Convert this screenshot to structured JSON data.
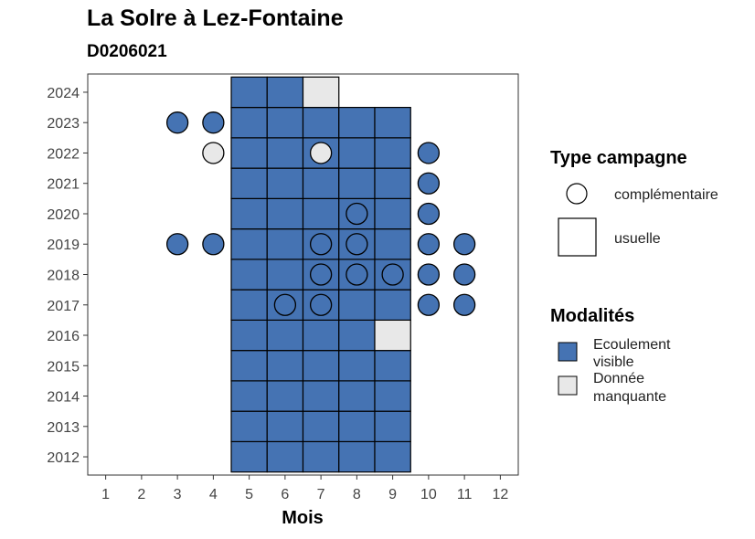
{
  "chart_data": {
    "type": "heatmap",
    "title": "La Solre à Lez-Fontaine",
    "subtitle": "D0206021",
    "xlabel": "Mois",
    "ylabel": "",
    "x_ticks": [
      1,
      2,
      3,
      4,
      5,
      6,
      7,
      8,
      9,
      10,
      11,
      12
    ],
    "y_ticks": [
      2012,
      2013,
      2014,
      2015,
      2016,
      2017,
      2018,
      2019,
      2020,
      2021,
      2022,
      2023,
      2024
    ],
    "xlim": [
      0.5,
      12.5
    ],
    "ylim": [
      2011.4,
      2024.6
    ],
    "colors": {
      "Ecoulement visible": "#4573b3",
      "Donnée manquante": "#e8e8e8"
    },
    "legends": {
      "type_campagne": {
        "title": "Type campagne",
        "items": [
          {
            "label": "complémentaire",
            "shape": "circle"
          },
          {
            "label": "usuelle",
            "shape": "square"
          }
        ]
      },
      "modalites": {
        "title": "Modalités",
        "items": [
          {
            "label_lines": [
              "Ecoulement",
              "visible"
            ],
            "key": "Ecoulement visible"
          },
          {
            "label_lines": [
              "Donnée",
              "manquante"
            ],
            "key": "Donnée manquante"
          }
        ]
      }
    },
    "usuelle": [
      {
        "year": 2012,
        "month": 5,
        "modalite": "Ecoulement visible"
      },
      {
        "year": 2012,
        "month": 6,
        "modalite": "Ecoulement visible"
      },
      {
        "year": 2012,
        "month": 7,
        "modalite": "Ecoulement visible"
      },
      {
        "year": 2012,
        "month": 8,
        "modalite": "Ecoulement visible"
      },
      {
        "year": 2012,
        "month": 9,
        "modalite": "Ecoulement visible"
      },
      {
        "year": 2013,
        "month": 5,
        "modalite": "Ecoulement visible"
      },
      {
        "year": 2013,
        "month": 6,
        "modalite": "Ecoulement visible"
      },
      {
        "year": 2013,
        "month": 7,
        "modalite": "Ecoulement visible"
      },
      {
        "year": 2013,
        "month": 8,
        "modalite": "Ecoulement visible"
      },
      {
        "year": 2013,
        "month": 9,
        "modalite": "Ecoulement visible"
      },
      {
        "year": 2014,
        "month": 5,
        "modalite": "Ecoulement visible"
      },
      {
        "year": 2014,
        "month": 6,
        "modalite": "Ecoulement visible"
      },
      {
        "year": 2014,
        "month": 7,
        "modalite": "Ecoulement visible"
      },
      {
        "year": 2014,
        "month": 8,
        "modalite": "Ecoulement visible"
      },
      {
        "year": 2014,
        "month": 9,
        "modalite": "Ecoulement visible"
      },
      {
        "year": 2015,
        "month": 5,
        "modalite": "Ecoulement visible"
      },
      {
        "year": 2015,
        "month": 6,
        "modalite": "Ecoulement visible"
      },
      {
        "year": 2015,
        "month": 7,
        "modalite": "Ecoulement visible"
      },
      {
        "year": 2015,
        "month": 8,
        "modalite": "Ecoulement visible"
      },
      {
        "year": 2015,
        "month": 9,
        "modalite": "Ecoulement visible"
      },
      {
        "year": 2016,
        "month": 5,
        "modalite": "Ecoulement visible"
      },
      {
        "year": 2016,
        "month": 6,
        "modalite": "Ecoulement visible"
      },
      {
        "year": 2016,
        "month": 7,
        "modalite": "Ecoulement visible"
      },
      {
        "year": 2016,
        "month": 8,
        "modalite": "Ecoulement visible"
      },
      {
        "year": 2016,
        "month": 9,
        "modalite": "Donnée manquante"
      },
      {
        "year": 2017,
        "month": 5,
        "modalite": "Ecoulement visible"
      },
      {
        "year": 2017,
        "month": 6,
        "modalite": "Ecoulement visible"
      },
      {
        "year": 2017,
        "month": 7,
        "modalite": "Ecoulement visible"
      },
      {
        "year": 2017,
        "month": 8,
        "modalite": "Ecoulement visible"
      },
      {
        "year": 2017,
        "month": 9,
        "modalite": "Ecoulement visible"
      },
      {
        "year": 2018,
        "month": 5,
        "modalite": "Ecoulement visible"
      },
      {
        "year": 2018,
        "month": 6,
        "modalite": "Ecoulement visible"
      },
      {
        "year": 2018,
        "month": 7,
        "modalite": "Ecoulement visible"
      },
      {
        "year": 2018,
        "month": 8,
        "modalite": "Ecoulement visible"
      },
      {
        "year": 2018,
        "month": 9,
        "modalite": "Ecoulement visible"
      },
      {
        "year": 2019,
        "month": 5,
        "modalite": "Ecoulement visible"
      },
      {
        "year": 2019,
        "month": 6,
        "modalite": "Ecoulement visible"
      },
      {
        "year": 2019,
        "month": 7,
        "modalite": "Ecoulement visible"
      },
      {
        "year": 2019,
        "month": 8,
        "modalite": "Ecoulement visible"
      },
      {
        "year": 2019,
        "month": 9,
        "modalite": "Ecoulement visible"
      },
      {
        "year": 2020,
        "month": 5,
        "modalite": "Ecoulement visible"
      },
      {
        "year": 2020,
        "month": 6,
        "modalite": "Ecoulement visible"
      },
      {
        "year": 2020,
        "month": 7,
        "modalite": "Ecoulement visible"
      },
      {
        "year": 2020,
        "month": 8,
        "modalite": "Ecoulement visible"
      },
      {
        "year": 2020,
        "month": 9,
        "modalite": "Ecoulement visible"
      },
      {
        "year": 2021,
        "month": 5,
        "modalite": "Ecoulement visible"
      },
      {
        "year": 2021,
        "month": 6,
        "modalite": "Ecoulement visible"
      },
      {
        "year": 2021,
        "month": 7,
        "modalite": "Ecoulement visible"
      },
      {
        "year": 2021,
        "month": 8,
        "modalite": "Ecoulement visible"
      },
      {
        "year": 2021,
        "month": 9,
        "modalite": "Ecoulement visible"
      },
      {
        "year": 2022,
        "month": 5,
        "modalite": "Ecoulement visible"
      },
      {
        "year": 2022,
        "month": 6,
        "modalite": "Ecoulement visible"
      },
      {
        "year": 2022,
        "month": 7,
        "modalite": "Ecoulement visible"
      },
      {
        "year": 2022,
        "month": 8,
        "modalite": "Ecoulement visible"
      },
      {
        "year": 2022,
        "month": 9,
        "modalite": "Ecoulement visible"
      },
      {
        "year": 2023,
        "month": 5,
        "modalite": "Ecoulement visible"
      },
      {
        "year": 2023,
        "month": 6,
        "modalite": "Ecoulement visible"
      },
      {
        "year": 2023,
        "month": 7,
        "modalite": "Ecoulement visible"
      },
      {
        "year": 2023,
        "month": 8,
        "modalite": "Ecoulement visible"
      },
      {
        "year": 2023,
        "month": 9,
        "modalite": "Ecoulement visible"
      },
      {
        "year": 2024,
        "month": 5,
        "modalite": "Ecoulement visible"
      },
      {
        "year": 2024,
        "month": 6,
        "modalite": "Ecoulement visible"
      },
      {
        "year": 2024,
        "month": 7,
        "modalite": "Donnée manquante"
      }
    ],
    "complementaire": [
      {
        "year": 2023,
        "month": 3,
        "modalite": "Ecoulement visible"
      },
      {
        "year": 2023,
        "month": 4,
        "modalite": "Ecoulement visible"
      },
      {
        "year": 2022,
        "month": 4,
        "modalite": "Donnée manquante"
      },
      {
        "year": 2022,
        "month": 7,
        "modalite": "Donnée manquante"
      },
      {
        "year": 2022,
        "month": 10,
        "modalite": "Ecoulement visible"
      },
      {
        "year": 2021,
        "month": 10,
        "modalite": "Ecoulement visible"
      },
      {
        "year": 2020,
        "month": 8,
        "modalite": "Ecoulement visible"
      },
      {
        "year": 2020,
        "month": 10,
        "modalite": "Ecoulement visible"
      },
      {
        "year": 2019,
        "month": 3,
        "modalite": "Ecoulement visible"
      },
      {
        "year": 2019,
        "month": 4,
        "modalite": "Ecoulement visible"
      },
      {
        "year": 2019,
        "month": 7,
        "modalite": "Ecoulement visible"
      },
      {
        "year": 2019,
        "month": 8,
        "modalite": "Ecoulement visible"
      },
      {
        "year": 2019,
        "month": 10,
        "modalite": "Ecoulement visible"
      },
      {
        "year": 2019,
        "month": 11,
        "modalite": "Ecoulement visible"
      },
      {
        "year": 2018,
        "month": 7,
        "modalite": "Ecoulement visible"
      },
      {
        "year": 2018,
        "month": 8,
        "modalite": "Ecoulement visible"
      },
      {
        "year": 2018,
        "month": 9,
        "modalite": "Ecoulement visible"
      },
      {
        "year": 2018,
        "month": 10,
        "modalite": "Ecoulement visible"
      },
      {
        "year": 2018,
        "month": 11,
        "modalite": "Ecoulement visible"
      },
      {
        "year": 2017,
        "month": 6,
        "modalite": "Ecoulement visible"
      },
      {
        "year": 2017,
        "month": 7,
        "modalite": "Ecoulement visible"
      },
      {
        "year": 2017,
        "month": 10,
        "modalite": "Ecoulement visible"
      },
      {
        "year": 2017,
        "month": 11,
        "modalite": "Ecoulement visible"
      }
    ]
  }
}
